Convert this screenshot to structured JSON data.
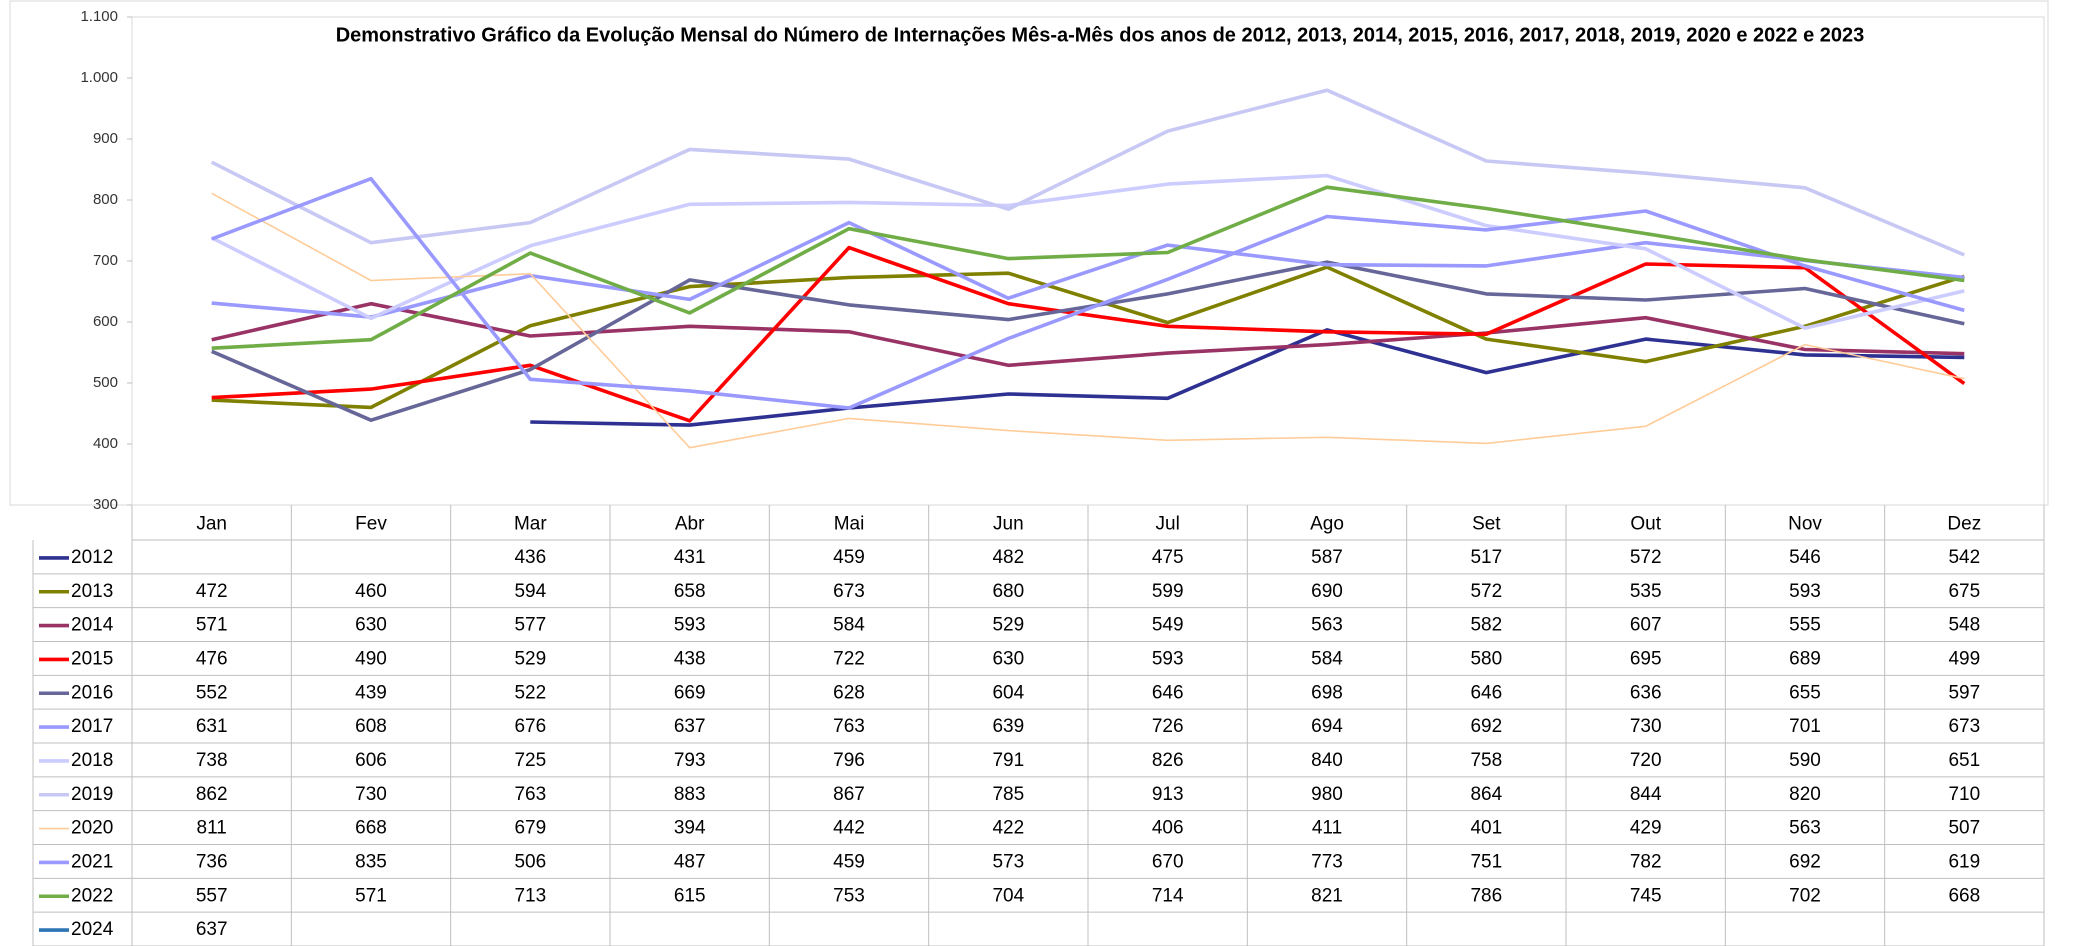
{
  "chart_data": {
    "type": "line",
    "title": "Demonstrativo Gráfico da Evolução Mensal do Número de Internações Mês-a-Mês dos anos de  2012, 2013, 2014, 2015, 2016, 2017, 2018, 2019, 2020 e 2022 e 2023",
    "categories": [
      "Jan",
      "Fev",
      "Mar",
      "Abr",
      "Mai",
      "Jun",
      "Jul",
      "Ago",
      "Set",
      "Out",
      "Nov",
      "Dez"
    ],
    "ylim": [
      300,
      1100
    ],
    "yticks": [
      300,
      400,
      500,
      600,
      700,
      800,
      900,
      {
        "value": 1000,
        "label": "1.000"
      },
      {
        "value": 1100,
        "label": "1.100"
      }
    ],
    "series": [
      {
        "name": "2012",
        "color": "#2e3192",
        "values": [
          null,
          null,
          436,
          431,
          459,
          482,
          475,
          587,
          517,
          572,
          546,
          542
        ]
      },
      {
        "name": "2013",
        "color": "#808000",
        "values": [
          472,
          460,
          594,
          658,
          673,
          680,
          599,
          690,
          572,
          535,
          593,
          675
        ]
      },
      {
        "name": "2014",
        "color": "#993366",
        "values": [
          571,
          630,
          577,
          593,
          584,
          529,
          549,
          563,
          582,
          607,
          555,
          548
        ]
      },
      {
        "name": "2015",
        "color": "#ff0000",
        "values": [
          476,
          490,
          529,
          438,
          722,
          630,
          593,
          584,
          580,
          695,
          689,
          499
        ]
      },
      {
        "name": "2016",
        "color": "#666699",
        "values": [
          552,
          439,
          522,
          669,
          628,
          604,
          646,
          698,
          646,
          636,
          655,
          597
        ]
      },
      {
        "name": "2017",
        "color": "#9999ff",
        "values": [
          631,
          608,
          676,
          637,
          763,
          639,
          726,
          694,
          692,
          730,
          701,
          673
        ]
      },
      {
        "name": "2018",
        "color": "#ccccff",
        "values": [
          738,
          606,
          725,
          793,
          796,
          791,
          826,
          840,
          758,
          720,
          590,
          651
        ]
      },
      {
        "name": "2019",
        "color": "#c8c8f4",
        "values": [
          862,
          730,
          763,
          883,
          867,
          785,
          913,
          980,
          864,
          844,
          820,
          710
        ]
      },
      {
        "name": "2020",
        "color": "#ffcc99",
        "values": [
          811,
          668,
          679,
          394,
          442,
          422,
          406,
          411,
          401,
          429,
          563,
          507
        ]
      },
      {
        "name": "2021",
        "color": "#9999ff",
        "values": [
          736,
          835,
          506,
          487,
          459,
          573,
          670,
          773,
          751,
          782,
          692,
          619
        ]
      },
      {
        "name": "2022",
        "color": "#70ad47",
        "values": [
          557,
          571,
          713,
          615,
          753,
          704,
          714,
          821,
          786,
          745,
          702,
          668
        ]
      },
      {
        "name": "2024",
        "color": "#2e75b6",
        "values": [
          637,
          null,
          null,
          null,
          null,
          null,
          null,
          null,
          null,
          null,
          null,
          null
        ]
      }
    ]
  }
}
